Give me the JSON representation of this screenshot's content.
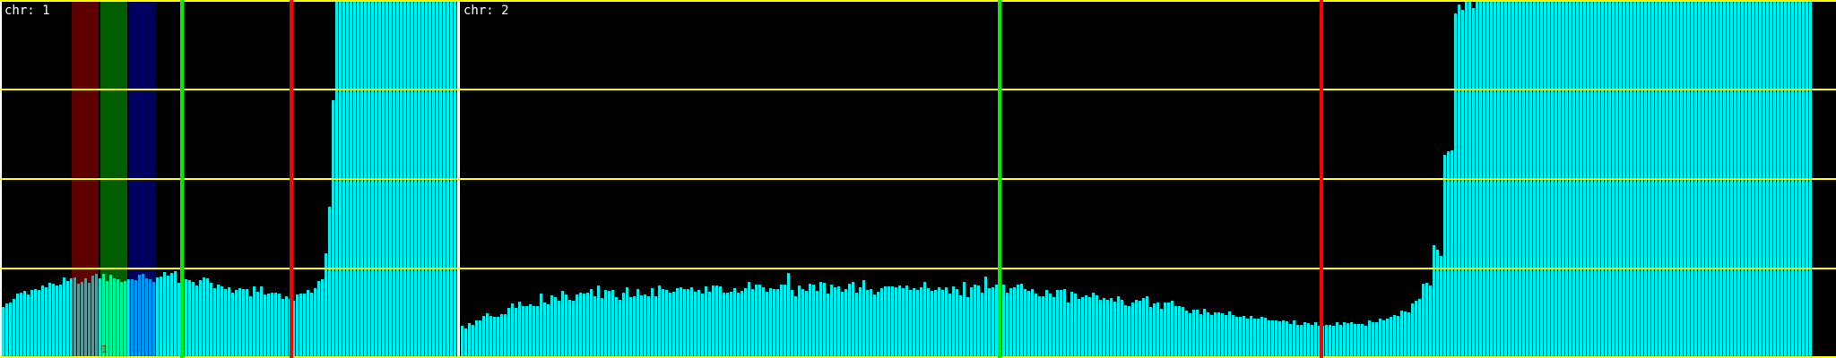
{
  "chart_data": {
    "type": "bar",
    "ylim": [
      0,
      4
    ],
    "grid_y": [
      0,
      1,
      2,
      3,
      4
    ],
    "grid": true,
    "grid_color": "#ffff00",
    "bar_color": "#00eeee",
    "panels": [
      {
        "label": "chr: 1",
        "values": [
          0.57,
          0.61,
          0.62,
          0.66,
          0.72,
          0.73,
          0.75,
          0.71,
          0.76,
          0.77,
          0.76,
          0.81,
          0.79,
          0.84,
          0.83,
          0.81,
          0.82,
          0.9,
          0.86,
          0.89,
          0.9,
          0.83,
          0.85,
          0.89,
          0.84,
          0.92,
          0.94,
          0.89,
          0.94,
          0.86,
          0.93,
          0.89,
          0.88,
          0.85,
          0.86,
          0.88,
          0.88,
          0.87,
          0.93,
          0.94,
          0.89,
          0.88,
          0.85,
          0.9,
          0.91,
          0.96,
          0.92,
          0.95,
          0.97,
          0.84,
          0.9,
          0.88,
          0.87,
          0.85,
          0.81,
          0.87,
          0.9,
          0.89,
          0.84,
          0.78,
          0.82,
          0.8,
          0.77,
          0.79,
          0.73,
          0.76,
          0.78,
          0.77,
          0.77,
          0.69,
          0.8,
          0.74,
          0.8,
          0.71,
          0.72,
          0.73,
          0.73,
          0.72,
          0.66,
          0.69,
          0.66,
          0.64,
          0.71,
          0.72,
          0.72,
          0.76,
          0.73,
          0.78,
          0.86,
          0.88,
          1.17,
          1.69,
          2.88,
          4,
          4,
          4,
          4,
          4,
          4,
          4,
          4,
          4,
          4,
          4,
          4,
          4,
          4,
          4,
          4,
          4,
          4,
          4,
          4,
          4,
          4,
          4,
          4,
          4,
          4,
          4,
          4,
          4,
          4,
          4,
          4,
          4,
          4
        ],
        "regions": [
          {
            "color": "#ff0000",
            "label": "0"
          },
          {
            "color": "#00ff00"
          },
          {
            "color": "#0000ff"
          }
        ],
        "markers": [
          {
            "color": "#00ee00"
          },
          {
            "color": "#ff0000"
          }
        ]
      },
      {
        "label": "chr: 2",
        "values": [
          0.36,
          0.33,
          0.39,
          0.37,
          0.42,
          0.42,
          0.47,
          0.5,
          0.47,
          0.46,
          0.46,
          0.49,
          0.49,
          0.56,
          0.61,
          0.56,
          0.63,
          0.58,
          0.58,
          0.6,
          0.58,
          0.58,
          0.72,
          0.62,
          0.6,
          0.7,
          0.68,
          0.64,
          0.75,
          0.71,
          0.65,
          0.64,
          0.71,
          0.73,
          0.72,
          0.73,
          0.77,
          0.69,
          0.81,
          0.67,
          0.76,
          0.75,
          0.76,
          0.68,
          0.65,
          0.73,
          0.79,
          0.68,
          0.69,
          0.77,
          0.7,
          0.71,
          0.69,
          0.78,
          0.69,
          0.81,
          0.77,
          0.76,
          0.73,
          0.74,
          0.78,
          0.79,
          0.77,
          0.77,
          0.79,
          0.74,
          0.76,
          0.72,
          0.8,
          0.74,
          0.81,
          0.81,
          0.8,
          0.73,
          0.73,
          0.74,
          0.78,
          0.73,
          0.75,
          0.78,
          0.85,
          0.77,
          0.82,
          0.82,
          0.79,
          0.74,
          0.78,
          0.77,
          0.77,
          0.82,
          0.82,
          0.95,
          0.76,
          0.69,
          0.81,
          0.77,
          0.75,
          0.83,
          0.82,
          0.75,
          0.85,
          0.84,
          0.72,
          0.82,
          0.79,
          0.8,
          0.74,
          0.77,
          0.83,
          0.85,
          0.73,
          0.79,
          0.87,
          0.76,
          0.77,
          0.71,
          0.74,
          0.78,
          0.8,
          0.8,
          0.8,
          0.79,
          0.81,
          0.78,
          0.81,
          0.76,
          0.78,
          0.76,
          0.79,
          0.85,
          0.78,
          0.75,
          0.76,
          0.79,
          0.76,
          0.79,
          0.72,
          0.8,
          0.77,
          0.7,
          0.85,
          0.68,
          0.79,
          0.82,
          0.81,
          0.73,
          0.91,
          0.78,
          0.79,
          0.82,
          0.82,
          0.82,
          0.73,
          0.78,
          0.79,
          0.82,
          0.83,
          0.77,
          0.75,
          0.77,
          0.72,
          0.69,
          0.69,
          0.76,
          0.72,
          0.68,
          0.76,
          0.76,
          0.77,
          0.62,
          0.74,
          0.72,
          0.66,
          0.68,
          0.7,
          0.68,
          0.73,
          0.7,
          0.65,
          0.67,
          0.65,
          0.67,
          0.63,
          0.69,
          0.65,
          0.59,
          0.58,
          0.62,
          0.65,
          0.64,
          0.67,
          0.69,
          0.57,
          0.61,
          0.62,
          0.55,
          0.62,
          0.62,
          0.64,
          0.58,
          0.58,
          0.57,
          0.53,
          0.5,
          0.54,
          0.54,
          0.49,
          0.55,
          0.51,
          0.48,
          0.51,
          0.51,
          0.5,
          0.48,
          0.52,
          0.48,
          0.46,
          0.46,
          0.47,
          0.44,
          0.47,
          0.44,
          0.44,
          0.46,
          0.45,
          0.42,
          0.42,
          0.42,
          0.41,
          0.42,
          0.41,
          0.38,
          0.42,
          0.37,
          0.37,
          0.4,
          0.39,
          0.37,
          0.4,
          0.36,
          0.36,
          0.37,
          0.37,
          0.36,
          0.4,
          0.37,
          0.4,
          0.39,
          0.4,
          0.38,
          0.38,
          0.38,
          0.36,
          0.42,
          0.4,
          0.4,
          0.44,
          0.42,
          0.44,
          0.46,
          0.48,
          0.47,
          0.53,
          0.52,
          0.51,
          0.61,
          0.64,
          0.66,
          0.83,
          0.84,
          0.81,
          1.26,
          1.21,
          1.14,
          2.27,
          2.31,
          2.32,
          3.85,
          3.95,
          3.89,
          4,
          3.98,
          3.91,
          4,
          4,
          4,
          4,
          4,
          4,
          4,
          4,
          4,
          4,
          4,
          4,
          4,
          4,
          4,
          4,
          4,
          4,
          4,
          4,
          4,
          4,
          4,
          4,
          4,
          4,
          4,
          4,
          4,
          4,
          4,
          4,
          4,
          4,
          4,
          4,
          4,
          4,
          4,
          4,
          4,
          4,
          4,
          4,
          4,
          4,
          4,
          4,
          4,
          4,
          4,
          4,
          4,
          4,
          4,
          4,
          4,
          4,
          4,
          4,
          4,
          4,
          4,
          4,
          4,
          4,
          4,
          4,
          4,
          4,
          4,
          4,
          4,
          4,
          4,
          4,
          4,
          4,
          4,
          4,
          4,
          4,
          4,
          4,
          4,
          4,
          4,
          4,
          4,
          4,
          4,
          4,
          4,
          4
        ],
        "regions": [],
        "markers": [
          {
            "color": "#00ee00"
          },
          {
            "color": "#ff0000"
          }
        ]
      }
    ]
  }
}
